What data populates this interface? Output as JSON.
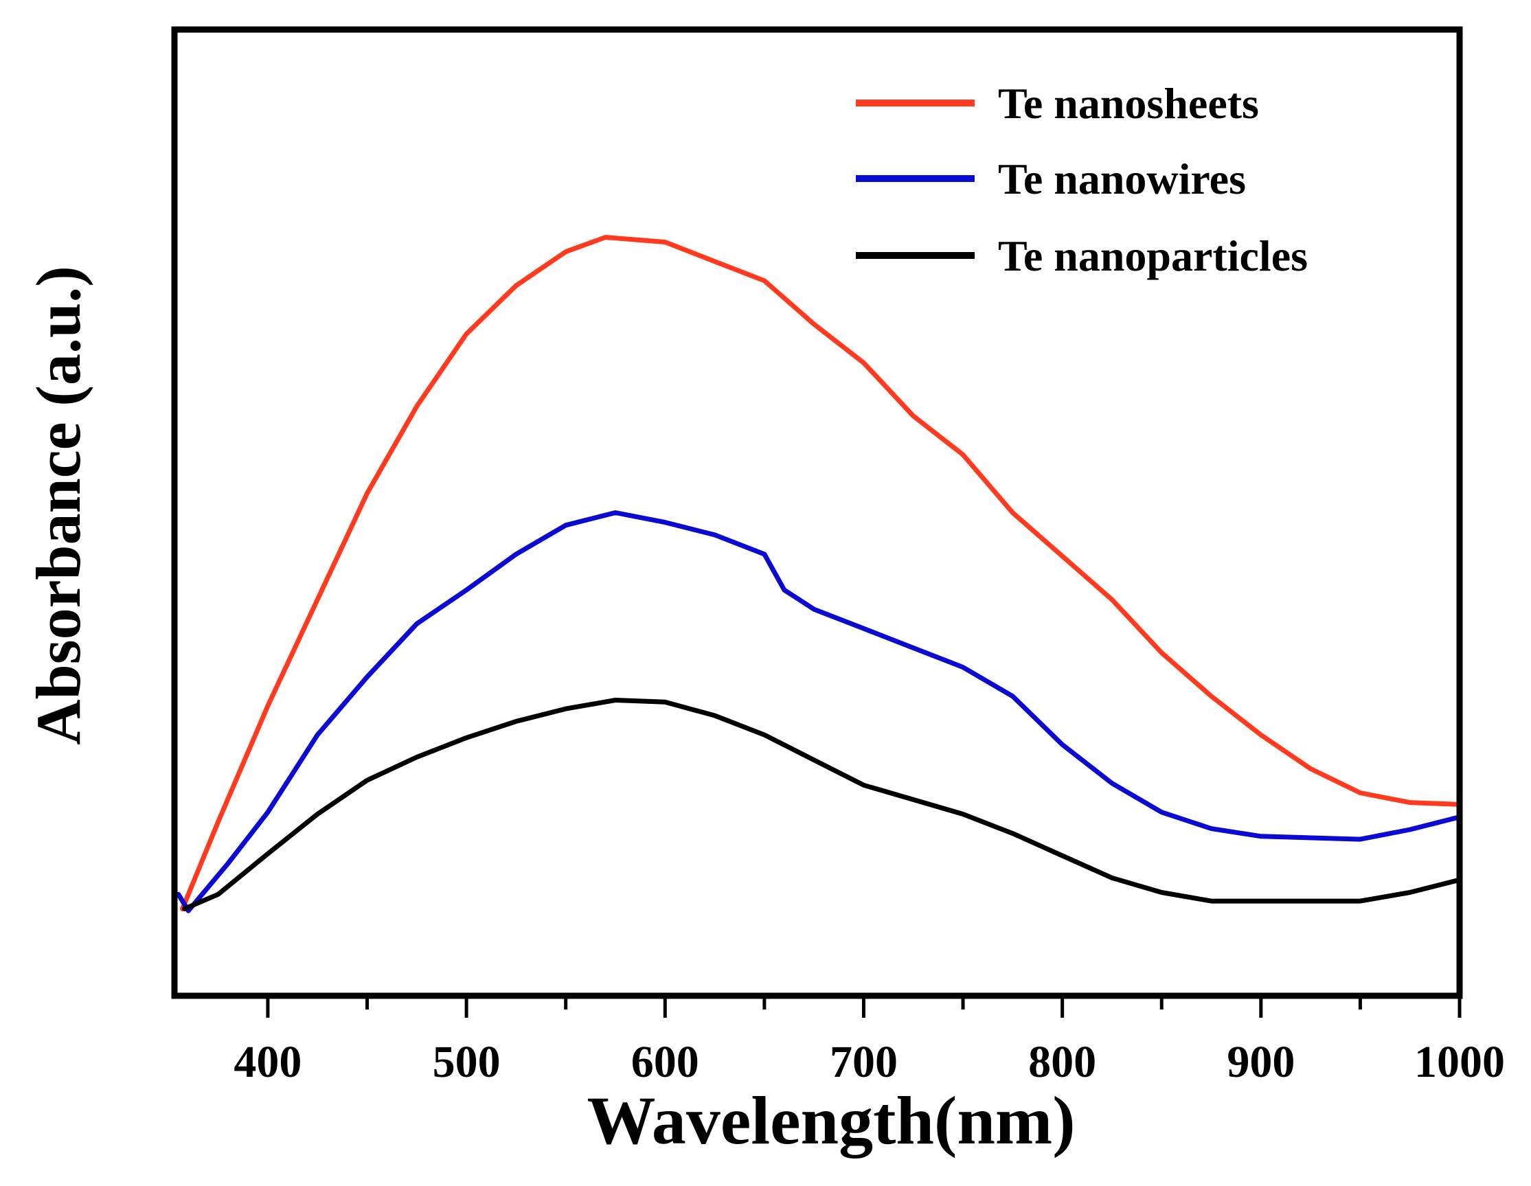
{
  "chart_data": {
    "type": "line",
    "title": "",
    "xlabel": "Wavelength(nm)",
    "ylabel": "Absorbance (a.u.)",
    "xlim": [
      353,
      1000
    ],
    "ylim": [
      0,
      1
    ],
    "xticks": [
      400,
      500,
      600,
      700,
      800,
      900,
      1000
    ],
    "xticks_minor": [
      450,
      550,
      650,
      750,
      850,
      950
    ],
    "yticks": [],
    "grid": false,
    "legend_position": "top-right",
    "series": [
      {
        "name": "Te nanosheets",
        "color": "#ff3a1e",
        "x": [
          357,
          375,
          400,
          425,
          450,
          475,
          500,
          525,
          550,
          570,
          600,
          625,
          650,
          675,
          700,
          725,
          750,
          775,
          800,
          825,
          850,
          875,
          900,
          925,
          950,
          975,
          1000
        ],
        "y": [
          0.09,
          0.18,
          0.3,
          0.41,
          0.52,
          0.61,
          0.685,
          0.735,
          0.77,
          0.785,
          0.78,
          0.76,
          0.74,
          0.695,
          0.655,
          0.6,
          0.56,
          0.5,
          0.455,
          0.41,
          0.355,
          0.31,
          0.27,
          0.235,
          0.21,
          0.2,
          0.198
        ]
      },
      {
        "name": "Te nanowires",
        "color": "#0a0ad2",
        "x": [
          355,
          360,
          380,
          400,
          425,
          450,
          475,
          500,
          525,
          550,
          575,
          600,
          625,
          650,
          660,
          675,
          700,
          725,
          750,
          775,
          800,
          825,
          850,
          875,
          900,
          950,
          975,
          1000
        ],
        "y": [
          0.105,
          0.088,
          0.137,
          0.19,
          0.27,
          0.33,
          0.385,
          0.42,
          0.457,
          0.487,
          0.5,
          0.49,
          0.477,
          0.457,
          0.42,
          0.4,
          0.38,
          0.36,
          0.34,
          0.31,
          0.26,
          0.22,
          0.19,
          0.173,
          0.165,
          0.162,
          0.172,
          0.185
        ]
      },
      {
        "name": "Te nanoparticles",
        "color": "#000000",
        "x": [
          358,
          375,
          400,
          425,
          450,
          475,
          500,
          525,
          550,
          575,
          600,
          625,
          650,
          675,
          700,
          725,
          750,
          775,
          800,
          825,
          850,
          875,
          900,
          950,
          975,
          1000
        ],
        "y": [
          0.09,
          0.105,
          0.147,
          0.188,
          0.223,
          0.247,
          0.267,
          0.284,
          0.297,
          0.306,
          0.304,
          0.29,
          0.27,
          0.244,
          0.218,
          0.203,
          0.188,
          0.168,
          0.145,
          0.122,
          0.107,
          0.098,
          0.098,
          0.098,
          0.107,
          0.12
        ]
      }
    ]
  }
}
